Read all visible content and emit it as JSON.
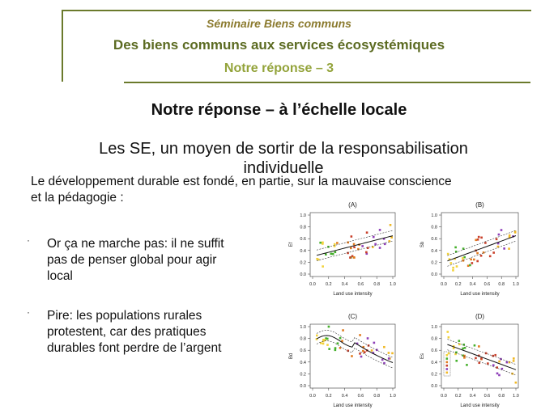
{
  "header": {
    "seminar": "Séminaire Biens communs",
    "title": "Des biens communs aux services écosystémiques",
    "reponse": "Notre réponse – 3"
  },
  "slide": {
    "title": "Notre réponse – à l’échelle locale",
    "subtitle": "Les SE, un moyen de sortir de la responsabilisation individuelle",
    "intro": "Le développement durable est fondé, en partie, sur la mauvaise conscience et la pédagogie :",
    "bullets": [
      "Or ça ne marche pas: il ne suffit pas de penser global pour agir local",
      "Pire: les populations rurales protestent, car des pratiques durables font perdre de l’argent"
    ],
    "bullet_marker": "·"
  },
  "figure": {
    "panels": [
      {
        "label": "(A)",
        "ylabel": "Ef",
        "xlabel": "Land use intensity"
      },
      {
        "label": "(B)",
        "ylabel": "Sb",
        "xlabel": "Land use intensity"
      },
      {
        "label": "(C)",
        "ylabel": "Bd",
        "xlabel": "Land use intensity"
      },
      {
        "label": "(D)",
        "ylabel": "Es",
        "xlabel": "Land use intensity"
      }
    ],
    "xticks": [
      "0.0",
      "0.2",
      "0.4",
      "0.6",
      "0.8",
      "1.0"
    ],
    "yticks": [
      "0.0",
      "0.2",
      "0.4",
      "0.6",
      "0.8",
      "1.0"
    ],
    "point_colors": [
      "#f2d23a",
      "#45b02b",
      "#e07a1e",
      "#c9402b",
      "#8e3fb8",
      "#f0b824"
    ]
  }
}
